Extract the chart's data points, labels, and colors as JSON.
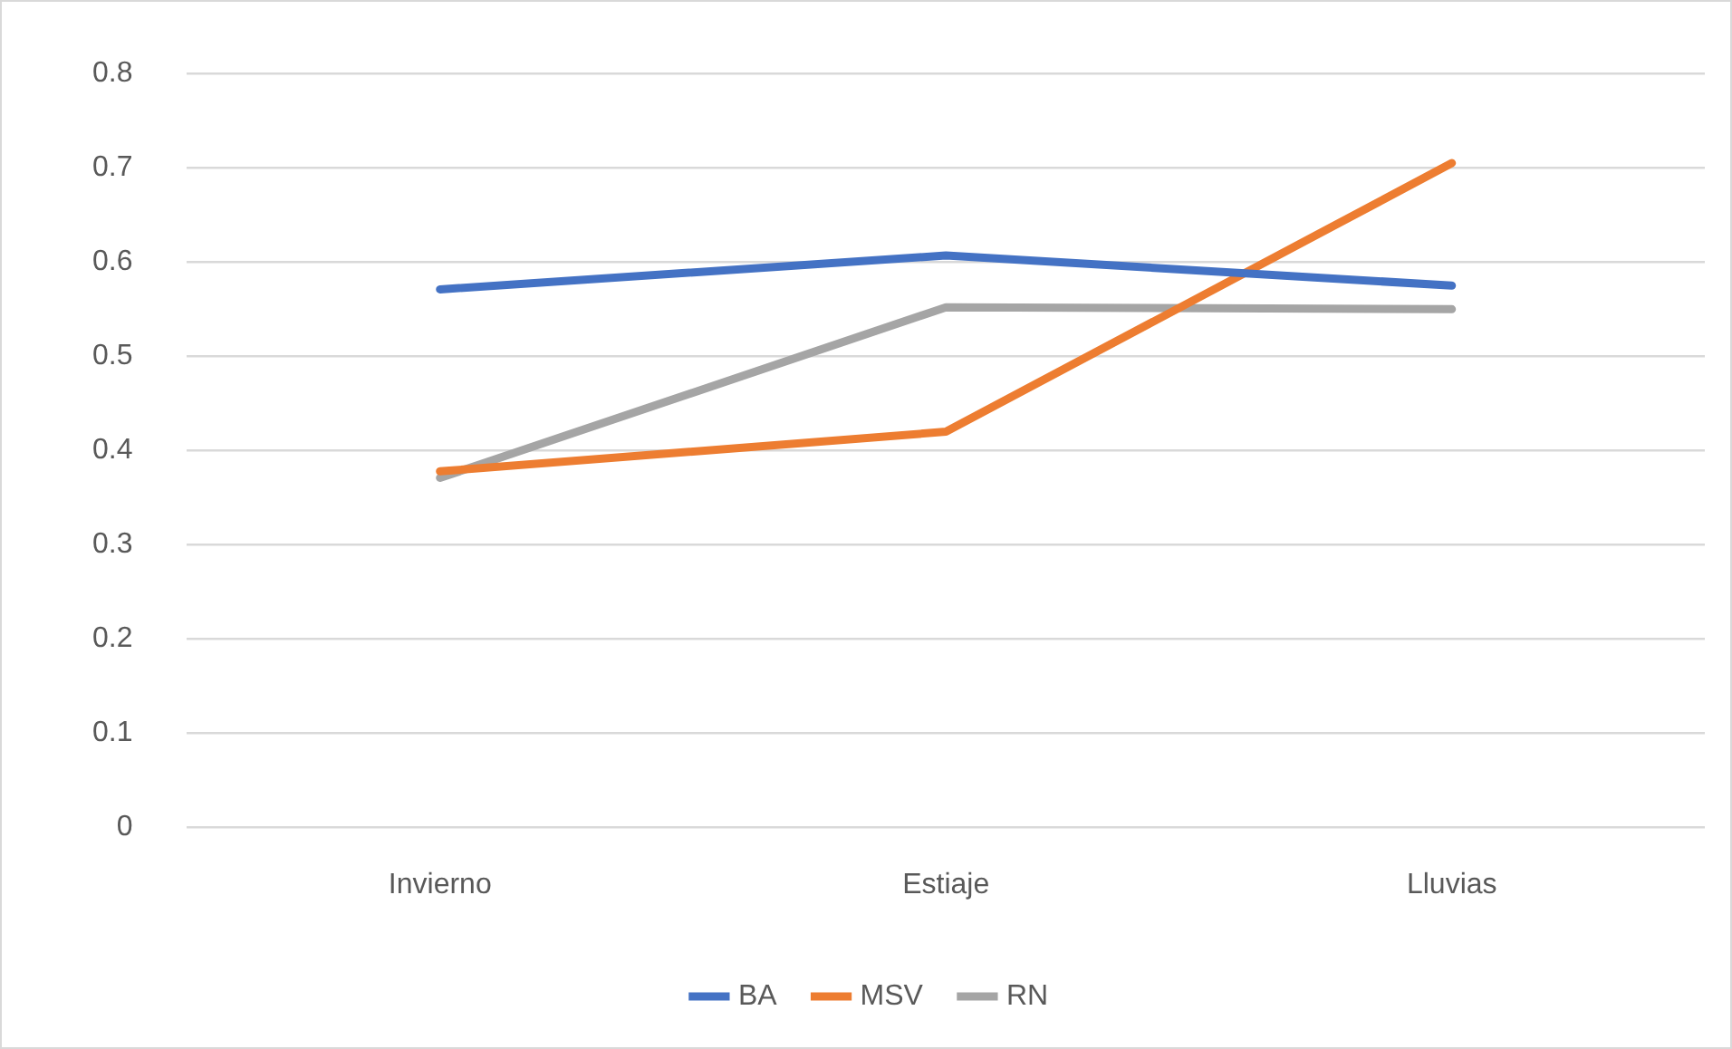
{
  "chart_data": {
    "type": "line",
    "categories": [
      "Invierno",
      "Estiaje",
      "Lluvias"
    ],
    "series": [
      {
        "name": "BA",
        "color": "#4472c4",
        "values": [
          0.571,
          0.607,
          0.575
        ]
      },
      {
        "name": "MSV",
        "color": "#ed7d31",
        "values": [
          0.378,
          0.42,
          0.705
        ]
      },
      {
        "name": "RN",
        "color": "#a5a5a5",
        "values": [
          0.371,
          0.552,
          0.55
        ]
      }
    ],
    "ylim": [
      0,
      0.8
    ],
    "yticks": [
      0,
      0.1,
      0.2,
      0.3,
      0.4,
      0.5,
      0.6,
      0.7,
      0.8
    ],
    "grid": "y",
    "legend": "bottom",
    "marker": "none",
    "line_style": "solid"
  }
}
